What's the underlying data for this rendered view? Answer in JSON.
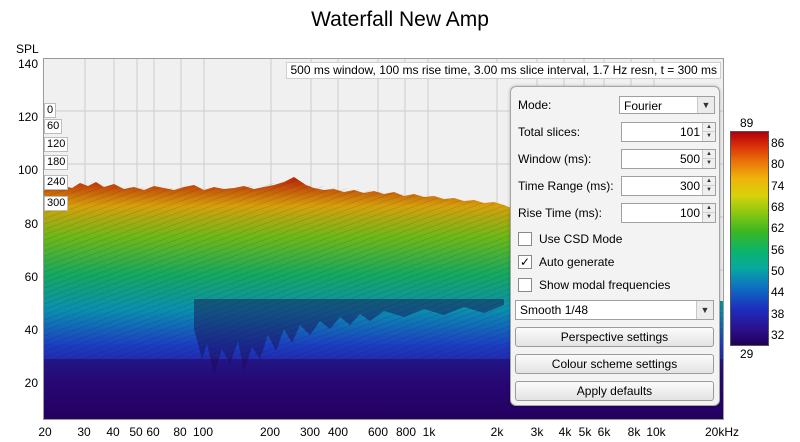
{
  "title": "Waterfall New Amp",
  "y_axis_label": "SPL",
  "y_ticks": [
    "140",
    "120",
    "100",
    "80",
    "60",
    "40",
    "20"
  ],
  "x_ticks": [
    "20",
    "30",
    "40",
    "50",
    "60",
    "80",
    "100",
    "200",
    "300",
    "400",
    "600",
    "800",
    "1k",
    "2k",
    "3k",
    "4k",
    "5k",
    "6k",
    "8k",
    "10k",
    "20kHz"
  ],
  "params_text": "500 ms window, 100 ms rise time, 3.00 ms slice interval, 1.7 Hz resn, t = 300 ms",
  "slice_labels": [
    "0",
    "60",
    "120",
    "180",
    "240",
    "300"
  ],
  "panel": {
    "mode_label": "Mode:",
    "mode_value": "Fourier",
    "total_slices_label": "Total slices:",
    "total_slices_value": "101",
    "window_label": "Window (ms):",
    "window_value": "500",
    "time_range_label": "Time Range (ms):",
    "time_range_value": "300",
    "rise_time_label": "Rise Time (ms):",
    "rise_time_value": "100",
    "use_csd_label": "Use CSD Mode",
    "use_csd_checked": false,
    "auto_generate_label": "Auto generate",
    "auto_generate_checked": true,
    "show_modal_label": "Show modal frequencies",
    "show_modal_checked": false,
    "smoothing_value": "Smooth 1/48",
    "perspective_button": "Perspective settings",
    "colour_scheme_button": "Colour scheme settings",
    "apply_defaults_button": "Apply defaults"
  },
  "colour_scale": {
    "max_label": "89",
    "min_label": "29",
    "ticks": [
      "86",
      "80",
      "74",
      "68",
      "62",
      "56",
      "50",
      "44",
      "38",
      "32"
    ],
    "colors": [
      "#1f005a",
      "#1c2fbd",
      "#08a8a0",
      "#38b723",
      "#d6d20b",
      "#e86c09",
      "#b0000a"
    ]
  },
  "check_mark": "✓"
}
